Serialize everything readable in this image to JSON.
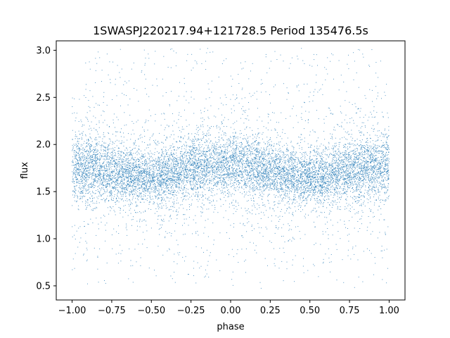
{
  "chart_data": {
    "type": "scatter",
    "title": "1SWASPJ220217.94+121728.5 Period 135476.5s",
    "xlabel": "phase",
    "ylabel": "flux",
    "xlim": [
      -1.1,
      1.1
    ],
    "ylim": [
      0.35,
      3.1
    ],
    "x_ticks": [
      -1.0,
      -0.75,
      -0.5,
      -0.25,
      0.0,
      0.25,
      0.5,
      0.75,
      1.0
    ],
    "x_tick_labels": [
      "−1.00",
      "−0.75",
      "−0.50",
      "−0.25",
      "0.00",
      "0.25",
      "0.50",
      "0.75",
      "1.00"
    ],
    "y_ticks": [
      0.5,
      1.0,
      1.5,
      2.0,
      2.5,
      3.0
    ],
    "y_tick_labels": [
      "0.5",
      "1.0",
      "1.5",
      "2.0",
      "2.5",
      "3.0"
    ],
    "grid": false,
    "marker_color": "#1f77b4",
    "series": [
      {
        "x_range": [
          -1.0,
          1.0
        ],
        "flux_clip": [
          0.47,
          3.02
        ],
        "phase_profile": {
          "x": [
            -1.0,
            -0.9,
            -0.75,
            -0.6,
            -0.5,
            -0.4,
            -0.25,
            -0.1,
            0.0,
            0.1,
            0.25,
            0.4,
            0.5,
            0.6,
            0.75,
            0.9,
            1.0
          ],
          "center": [
            1.78,
            1.76,
            1.7,
            1.66,
            1.66,
            1.68,
            1.74,
            1.79,
            1.8,
            1.78,
            1.72,
            1.66,
            1.65,
            1.67,
            1.72,
            1.76,
            1.79
          ],
          "core_half_width": [
            0.32,
            0.32,
            0.28,
            0.26,
            0.26,
            0.27,
            0.29,
            0.31,
            0.32,
            0.31,
            0.28,
            0.26,
            0.25,
            0.26,
            0.28,
            0.31,
            0.33
          ]
        }
      }
    ]
  }
}
